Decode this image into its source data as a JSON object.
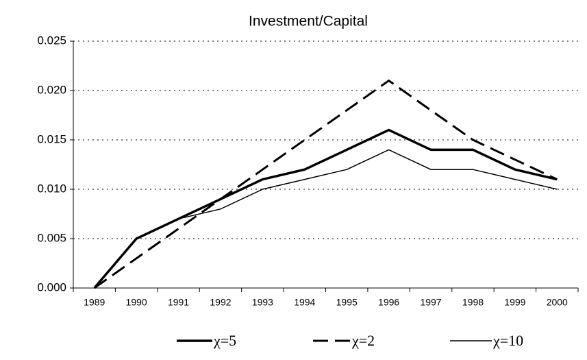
{
  "chart_data": {
    "type": "line",
    "title": "Investment/Capital",
    "categories": [
      "1989",
      "1990",
      "1991",
      "1992",
      "1993",
      "1994",
      "1995",
      "1996",
      "1997",
      "1998",
      "1999",
      "2000"
    ],
    "series": [
      {
        "name": "χ=5",
        "color": "#000000",
        "width": 3.5,
        "dash": "none",
        "values": [
          0,
          0.005,
          0.007,
          0.009,
          0.011,
          0.012,
          0.014,
          0.016,
          0.014,
          0.014,
          0.012,
          0.011
        ]
      },
      {
        "name": "χ=2",
        "color": "#000000",
        "width": 3,
        "dash": "22 10",
        "values": [
          0,
          0.003,
          0.006,
          0.009,
          0.012,
          0.015,
          0.018,
          0.021,
          0.018,
          0.015,
          0.013,
          0.011
        ]
      },
      {
        "name": "χ=10",
        "color": "#000000",
        "width": 1.5,
        "dash": "none",
        "values": [
          0,
          0.005,
          0.007,
          0.008,
          0.01,
          0.011,
          0.012,
          0.014,
          0.012,
          0.012,
          0.011,
          0.01
        ]
      }
    ],
    "ylim": [
      0,
      0.025
    ],
    "yticks": [
      {
        "value": 0,
        "label": "0.000"
      },
      {
        "value": 0.005,
        "label": "0.005"
      },
      {
        "value": 0.01,
        "label": "0.010"
      },
      {
        "value": 0.015,
        "label": "0.015"
      },
      {
        "value": 0.02,
        "label": "0.020"
      },
      {
        "value": 0.025,
        "label": "0.025"
      }
    ],
    "grid": true,
    "legend": "bottom"
  }
}
